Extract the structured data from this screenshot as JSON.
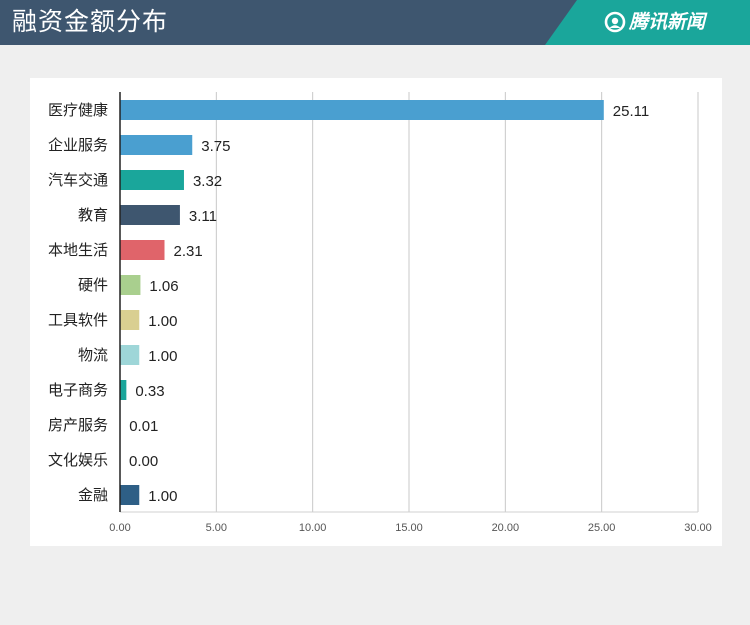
{
  "header": {
    "title": "融资金额分布",
    "brand": "腾讯新闻"
  },
  "colors": {
    "header_bg": "#3e566f",
    "brand_bg": "#1aa69b"
  },
  "chart_data": {
    "type": "bar",
    "orientation": "horizontal",
    "categories": [
      "医疗健康",
      "企业服务",
      "汽车交通",
      "教育",
      "本地生活",
      "硬件",
      "工具软件",
      "物流",
      "电子商务",
      "房产服务",
      "文化娱乐",
      "金融"
    ],
    "values": [
      25.11,
      3.75,
      3.32,
      3.11,
      2.31,
      1.06,
      1.0,
      1.0,
      0.33,
      0.01,
      0.0,
      1.0
    ],
    "value_labels": [
      "25.11",
      "3.75",
      "3.32",
      "3.11",
      "2.31",
      "1.06",
      "1.00",
      "1.00",
      "0.33",
      "0.01",
      "0.00",
      "1.00"
    ],
    "colors": [
      "#4a9fd0",
      "#4a9fd0",
      "#1aa69b",
      "#3e566f",
      "#e0646a",
      "#a9cf8e",
      "#d9cf91",
      "#9ed6d8",
      "#1aa69b",
      "#3e566f",
      "#3e566f",
      "#2e5f86"
    ],
    "xlim": [
      0,
      30
    ],
    "ticks": [
      "0.00",
      "5.00",
      "10.00",
      "15.00",
      "20.00",
      "25.00",
      "30.00"
    ],
    "tick_values": [
      0,
      5,
      10,
      15,
      20,
      25,
      30
    ],
    "grid": true
  }
}
